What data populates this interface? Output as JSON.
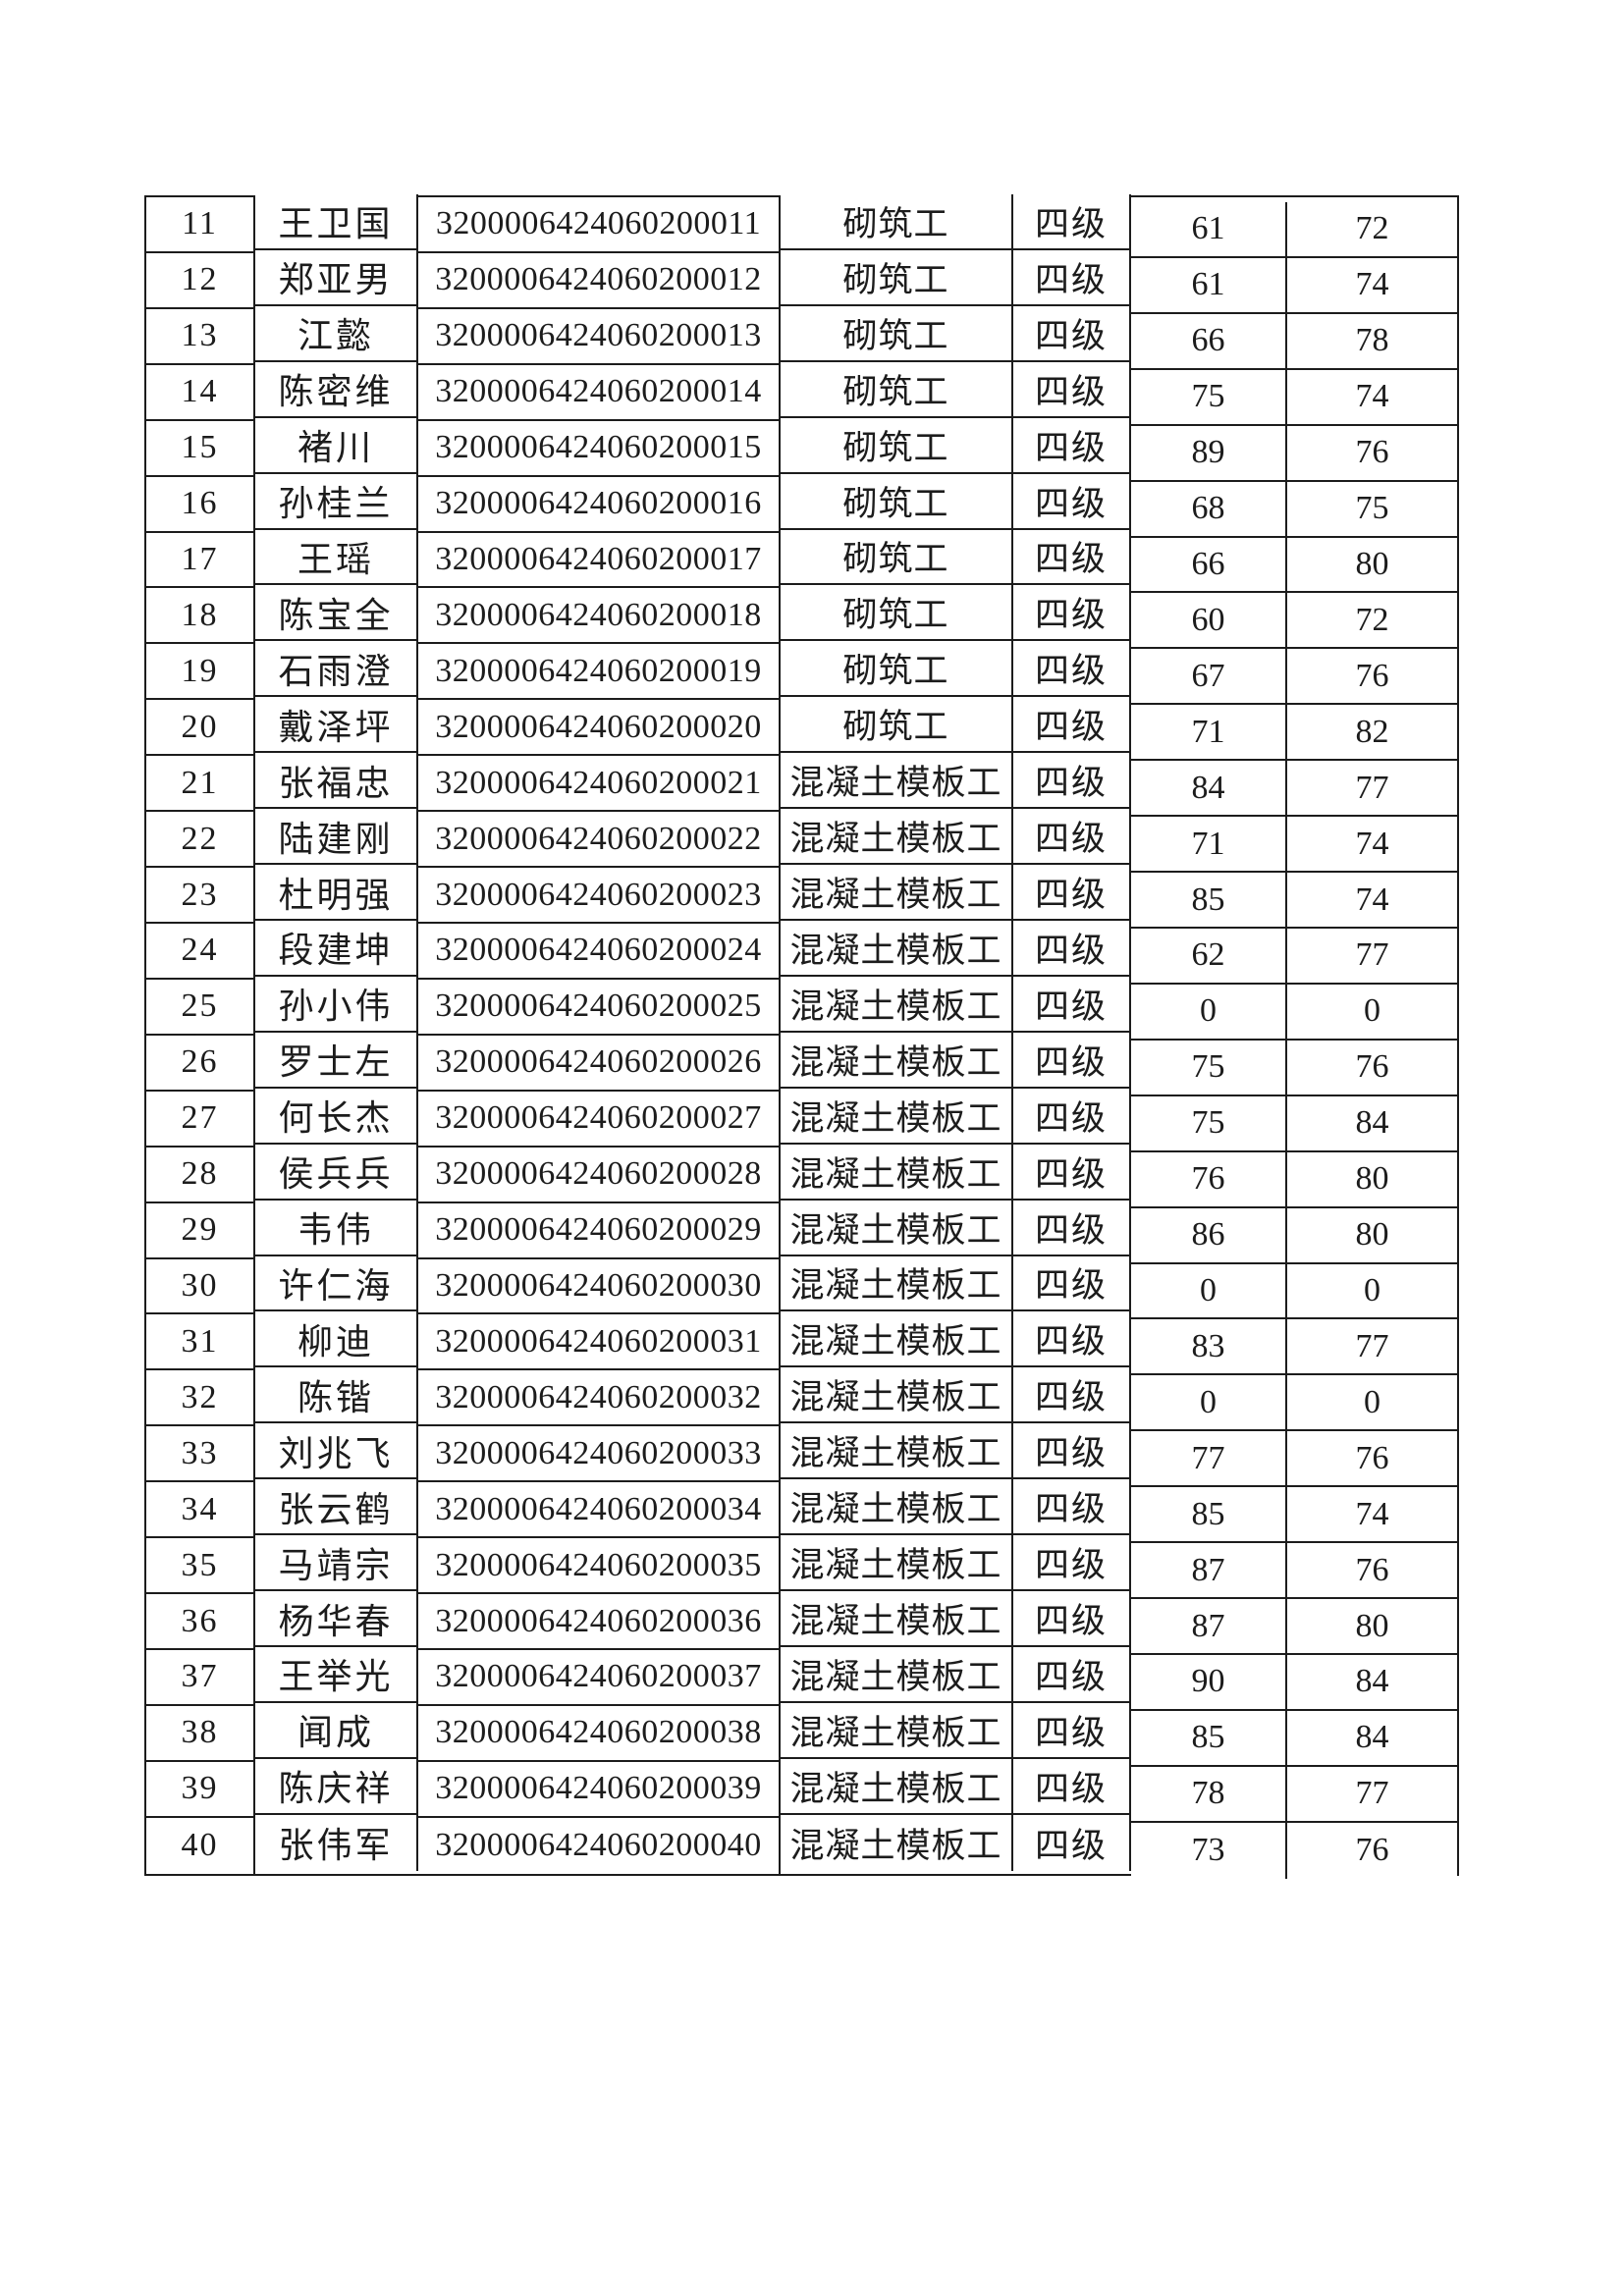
{
  "colors": {
    "ink": "#1c1c1c",
    "page_bg": "#ffffff"
  },
  "table": {
    "columns": [
      "num",
      "name",
      "cert_id",
      "occupation",
      "level",
      "score1",
      "score2"
    ],
    "rows": [
      {
        "num": "11",
        "name": "王卫国",
        "cert_id": "3200006424060200011",
        "occupation": "砌筑工",
        "level": "四级",
        "score1": "61",
        "score2": "72"
      },
      {
        "num": "12",
        "name": "郑亚男",
        "cert_id": "3200006424060200012",
        "occupation": "砌筑工",
        "level": "四级",
        "score1": "61",
        "score2": "74"
      },
      {
        "num": "13",
        "name": "江懿",
        "cert_id": "3200006424060200013",
        "occupation": "砌筑工",
        "level": "四级",
        "score1": "66",
        "score2": "78"
      },
      {
        "num": "14",
        "name": "陈密维",
        "cert_id": "3200006424060200014",
        "occupation": "砌筑工",
        "level": "四级",
        "score1": "75",
        "score2": "74"
      },
      {
        "num": "15",
        "name": "褚川",
        "cert_id": "3200006424060200015",
        "occupation": "砌筑工",
        "level": "四级",
        "score1": "89",
        "score2": "76"
      },
      {
        "num": "16",
        "name": "孙桂兰",
        "cert_id": "3200006424060200016",
        "occupation": "砌筑工",
        "level": "四级",
        "score1": "68",
        "score2": "75"
      },
      {
        "num": "17",
        "name": "王瑶",
        "cert_id": "3200006424060200017",
        "occupation": "砌筑工",
        "level": "四级",
        "score1": "66",
        "score2": "80"
      },
      {
        "num": "18",
        "name": "陈宝全",
        "cert_id": "3200006424060200018",
        "occupation": "砌筑工",
        "level": "四级",
        "score1": "60",
        "score2": "72"
      },
      {
        "num": "19",
        "name": "石雨澄",
        "cert_id": "3200006424060200019",
        "occupation": "砌筑工",
        "level": "四级",
        "score1": "67",
        "score2": "76"
      },
      {
        "num": "20",
        "name": "戴泽坪",
        "cert_id": "3200006424060200020",
        "occupation": "砌筑工",
        "level": "四级",
        "score1": "71",
        "score2": "82"
      },
      {
        "num": "21",
        "name": "张福忠",
        "cert_id": "3200006424060200021",
        "occupation": "混凝土模板工",
        "level": "四级",
        "score1": "84",
        "score2": "77"
      },
      {
        "num": "22",
        "name": "陆建刚",
        "cert_id": "3200006424060200022",
        "occupation": "混凝土模板工",
        "level": "四级",
        "score1": "71",
        "score2": "74"
      },
      {
        "num": "23",
        "name": "杜明强",
        "cert_id": "3200006424060200023",
        "occupation": "混凝土模板工",
        "level": "四级",
        "score1": "85",
        "score2": "74"
      },
      {
        "num": "24",
        "name": "段建坤",
        "cert_id": "3200006424060200024",
        "occupation": "混凝土模板工",
        "level": "四级",
        "score1": "62",
        "score2": "77"
      },
      {
        "num": "25",
        "name": "孙小伟",
        "cert_id": "3200006424060200025",
        "occupation": "混凝土模板工",
        "level": "四级",
        "score1": "0",
        "score2": "0"
      },
      {
        "num": "26",
        "name": "罗士左",
        "cert_id": "3200006424060200026",
        "occupation": "混凝土模板工",
        "level": "四级",
        "score1": "75",
        "score2": "76"
      },
      {
        "num": "27",
        "name": "何长杰",
        "cert_id": "3200006424060200027",
        "occupation": "混凝土模板工",
        "level": "四级",
        "score1": "75",
        "score2": "84"
      },
      {
        "num": "28",
        "name": "侯兵兵",
        "cert_id": "3200006424060200028",
        "occupation": "混凝土模板工",
        "level": "四级",
        "score1": "76",
        "score2": "80"
      },
      {
        "num": "29",
        "name": "韦伟",
        "cert_id": "3200006424060200029",
        "occupation": "混凝土模板工",
        "level": "四级",
        "score1": "86",
        "score2": "80"
      },
      {
        "num": "30",
        "name": "许仁海",
        "cert_id": "3200006424060200030",
        "occupation": "混凝土模板工",
        "level": "四级",
        "score1": "0",
        "score2": "0"
      },
      {
        "num": "31",
        "name": "柳迪",
        "cert_id": "3200006424060200031",
        "occupation": "混凝土模板工",
        "level": "四级",
        "score1": "83",
        "score2": "77"
      },
      {
        "num": "32",
        "name": "陈锴",
        "cert_id": "3200006424060200032",
        "occupation": "混凝土模板工",
        "level": "四级",
        "score1": "0",
        "score2": "0"
      },
      {
        "num": "33",
        "name": "刘兆飞",
        "cert_id": "3200006424060200033",
        "occupation": "混凝土模板工",
        "level": "四级",
        "score1": "77",
        "score2": "76"
      },
      {
        "num": "34",
        "name": "张云鹤",
        "cert_id": "3200006424060200034",
        "occupation": "混凝土模板工",
        "level": "四级",
        "score1": "85",
        "score2": "74"
      },
      {
        "num": "35",
        "name": "马靖宗",
        "cert_id": "3200006424060200035",
        "occupation": "混凝土模板工",
        "level": "四级",
        "score1": "87",
        "score2": "76"
      },
      {
        "num": "36",
        "name": "杨华春",
        "cert_id": "3200006424060200036",
        "occupation": "混凝土模板工",
        "level": "四级",
        "score1": "87",
        "score2": "80"
      },
      {
        "num": "37",
        "name": "王举光",
        "cert_id": "3200006424060200037",
        "occupation": "混凝土模板工",
        "level": "四级",
        "score1": "90",
        "score2": "84"
      },
      {
        "num": "38",
        "name": "闻成",
        "cert_id": "3200006424060200038",
        "occupation": "混凝土模板工",
        "level": "四级",
        "score1": "85",
        "score2": "84"
      },
      {
        "num": "39",
        "name": "陈庆祥",
        "cert_id": "3200006424060200039",
        "occupation": "混凝土模板工",
        "level": "四级",
        "score1": "78",
        "score2": "77"
      },
      {
        "num": "40",
        "name": "张伟军",
        "cert_id": "3200006424060200040",
        "occupation": "混凝土模板工",
        "level": "四级",
        "score1": "73",
        "score2": "76"
      }
    ]
  }
}
